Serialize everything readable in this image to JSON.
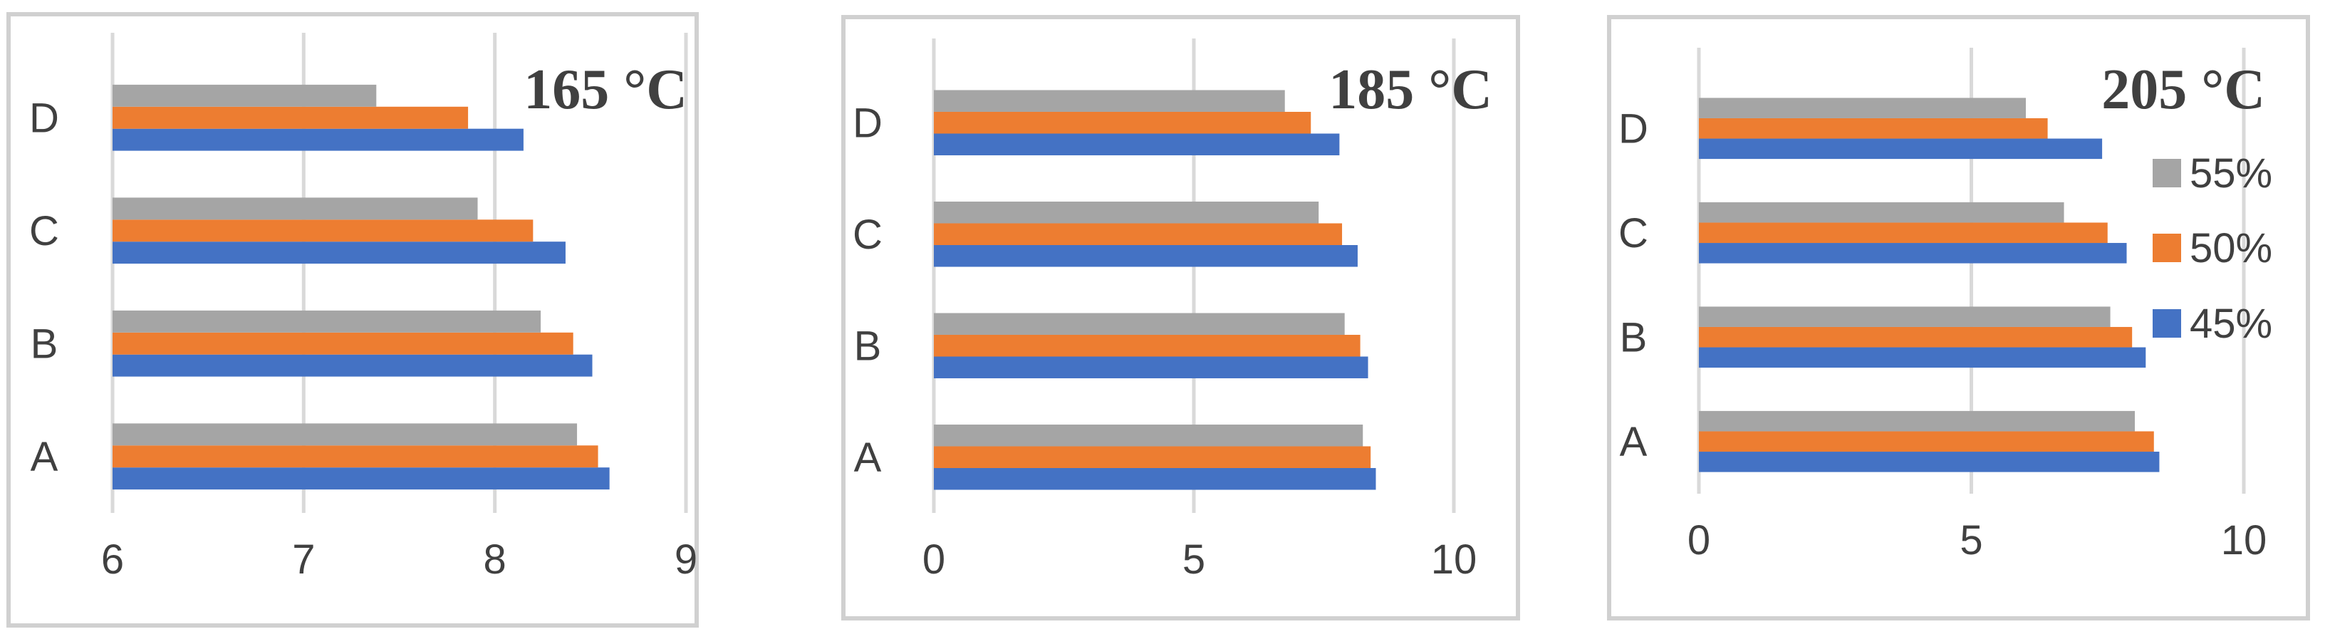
{
  "chart_data": [
    {
      "type": "bar",
      "orientation": "horizontal",
      "title": "165 °C",
      "categories": [
        "A",
        "B",
        "C",
        "D"
      ],
      "xlim": [
        6,
        9
      ],
      "xticks": [
        "6",
        "7",
        "8",
        "9"
      ],
      "grid": true,
      "series": [
        {
          "name": "45%",
          "color": "#4472C4",
          "values": [
            8.6,
            8.51,
            8.37,
            8.15
          ]
        },
        {
          "name": "50%",
          "color": "#ED7D31",
          "values": [
            8.54,
            8.41,
            8.2,
            7.86
          ]
        },
        {
          "name": "55%",
          "color": "#A5A5A5",
          "values": [
            8.43,
            8.24,
            7.91,
            7.38
          ]
        }
      ]
    },
    {
      "type": "bar",
      "orientation": "horizontal",
      "title": "185 °C",
      "categories": [
        "A",
        "B",
        "C",
        "D"
      ],
      "xlim": [
        0,
        10
      ],
      "xticks": [
        "0",
        "5",
        "10"
      ],
      "grid": true,
      "series": [
        {
          "name": "45%",
          "color": "#4472C4",
          "values": [
            8.5,
            8.35,
            8.15,
            7.8
          ]
        },
        {
          "name": "50%",
          "color": "#ED7D31",
          "values": [
            8.4,
            8.2,
            7.85,
            7.25
          ]
        },
        {
          "name": "55%",
          "color": "#A5A5A5",
          "values": [
            8.25,
            7.9,
            7.4,
            6.75
          ]
        }
      ]
    },
    {
      "type": "bar",
      "orientation": "horizontal",
      "title": "205 °C",
      "categories": [
        "A",
        "B",
        "C",
        "D"
      ],
      "xlim": [
        0,
        10
      ],
      "xticks": [
        "0",
        "5",
        "10"
      ],
      "grid": true,
      "legend_position": "right",
      "series": [
        {
          "name": "45%",
          "color": "#4472C4",
          "values": [
            8.45,
            8.2,
            7.85,
            7.4
          ]
        },
        {
          "name": "50%",
          "color": "#ED7D31",
          "values": [
            8.35,
            7.95,
            7.5,
            6.4
          ]
        },
        {
          "name": "55%",
          "color": "#A5A5A5",
          "values": [
            8.0,
            7.55,
            6.7,
            6.0
          ]
        }
      ]
    }
  ]
}
